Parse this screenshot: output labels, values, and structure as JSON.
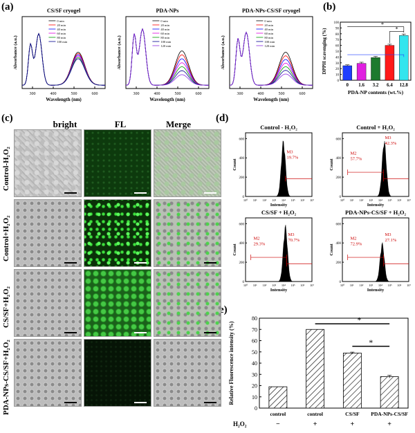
{
  "labels": {
    "a": "(a)",
    "b": "(b)",
    "c": "(c)",
    "d": "(d)",
    "e": "(e)"
  },
  "panel_a": {
    "plots": [
      {
        "title": "CS/SF cryogel",
        "legend": [
          "0 min",
          "20 min",
          "40 min",
          "60 min",
          "80 min",
          "100 min"
        ]
      },
      {
        "title": "PDA-NPs",
        "legend": [
          "0 min",
          "20 min",
          "40 min",
          "60 min",
          "80 min",
          "100 min",
          "120 min"
        ]
      },
      {
        "title": "PDA-NPs-CS/SF cryogel",
        "legend": [
          "0 min",
          "20 min",
          "40 min",
          "60 min",
          "80 min",
          "100 min",
          "120 min"
        ]
      }
    ],
    "xlabel": "Wavelength (nm)",
    "ylabel": "Absorbance (a.u.)",
    "xticks": [
      "300",
      "400",
      "500",
      "600"
    ]
  },
  "panel_c": {
    "columns": [
      "bright",
      "FL",
      "Merge"
    ],
    "rows": [
      "Control-H₂O₂",
      "Control+H₂O₂",
      "CS/SF+H₂O₂",
      "PDA-NPs-CS/SF+H₂O₂"
    ]
  },
  "panel_d": {
    "plots": [
      {
        "title": "Control - H₂O₂",
        "gates": [
          {
            "name": "M3",
            "pct": "19.7%"
          }
        ]
      },
      {
        "title": "Control + H₂O₂",
        "gates": [
          {
            "name": "M3",
            "pct": "42.3%"
          },
          {
            "name": "M2",
            "pct": "57.7%"
          }
        ]
      },
      {
        "title": "CS/SF + H₂O₂",
        "gates": [
          {
            "name": "M3",
            "pct": "70.7%"
          },
          {
            "name": "M2",
            "pct": "29.3%"
          }
        ]
      },
      {
        "title": "PDA-NPs-CS/SF + H₂O₂",
        "gates": [
          {
            "name": "M2",
            "pct": "72.9%"
          },
          {
            "name": "M3",
            "pct": "27.1%"
          }
        ]
      }
    ],
    "xlabel": "Intensity",
    "ylabel": "Count",
    "yticks": [
      "0",
      "200",
      "400",
      "600"
    ],
    "xticks": [
      "10⁰",
      "10¹",
      "10²",
      "10³",
      "10⁴",
      "10⁵",
      "10⁶",
      "10⁷"
    ]
  },
  "colors": {
    "bars_b": [
      "#1f3fff",
      "#e020e0",
      "#1d7a2e",
      "#ff1a1a",
      "#33e5ee"
    ],
    "gate": "#cc0000"
  },
  "chart_data": [
    {
      "type": "bar",
      "categories": [
        "0",
        "1.6",
        "3.2",
        "6.4",
        "12.8"
      ],
      "values": [
        25,
        29,
        39,
        60,
        77
      ],
      "errors": [
        1.5,
        2,
        2,
        2,
        2.5
      ],
      "xlabel": "PDA-NP contents (wt.%)",
      "ylabel": "DPPH scavenging (%)",
      "ylim": [
        0,
        100
      ],
      "yticks": [
        "0",
        "10",
        "20",
        "30",
        "40",
        "50",
        "60",
        "70",
        "80",
        "90",
        "100"
      ],
      "annotations": [
        "*",
        "*"
      ]
    },
    {
      "type": "bar",
      "categories": [
        "control",
        "control",
        "CS/SF",
        "PDA-NPs-CS/SF"
      ],
      "h2o2": [
        "−",
        "+",
        "+",
        "+"
      ],
      "h2o2_label": "H₂O₂",
      "values": [
        19,
        70,
        49,
        28
      ],
      "errors": [
        0,
        0,
        0.8,
        1.2
      ],
      "xlabel": "",
      "ylabel": "Relative Fluorescence intensity (%)",
      "ylim": [
        0,
        80
      ],
      "yticks": [
        "0",
        "10",
        "20",
        "30",
        "40",
        "50",
        "60",
        "70",
        "80"
      ],
      "annotations": [
        "*",
        "*"
      ]
    }
  ]
}
